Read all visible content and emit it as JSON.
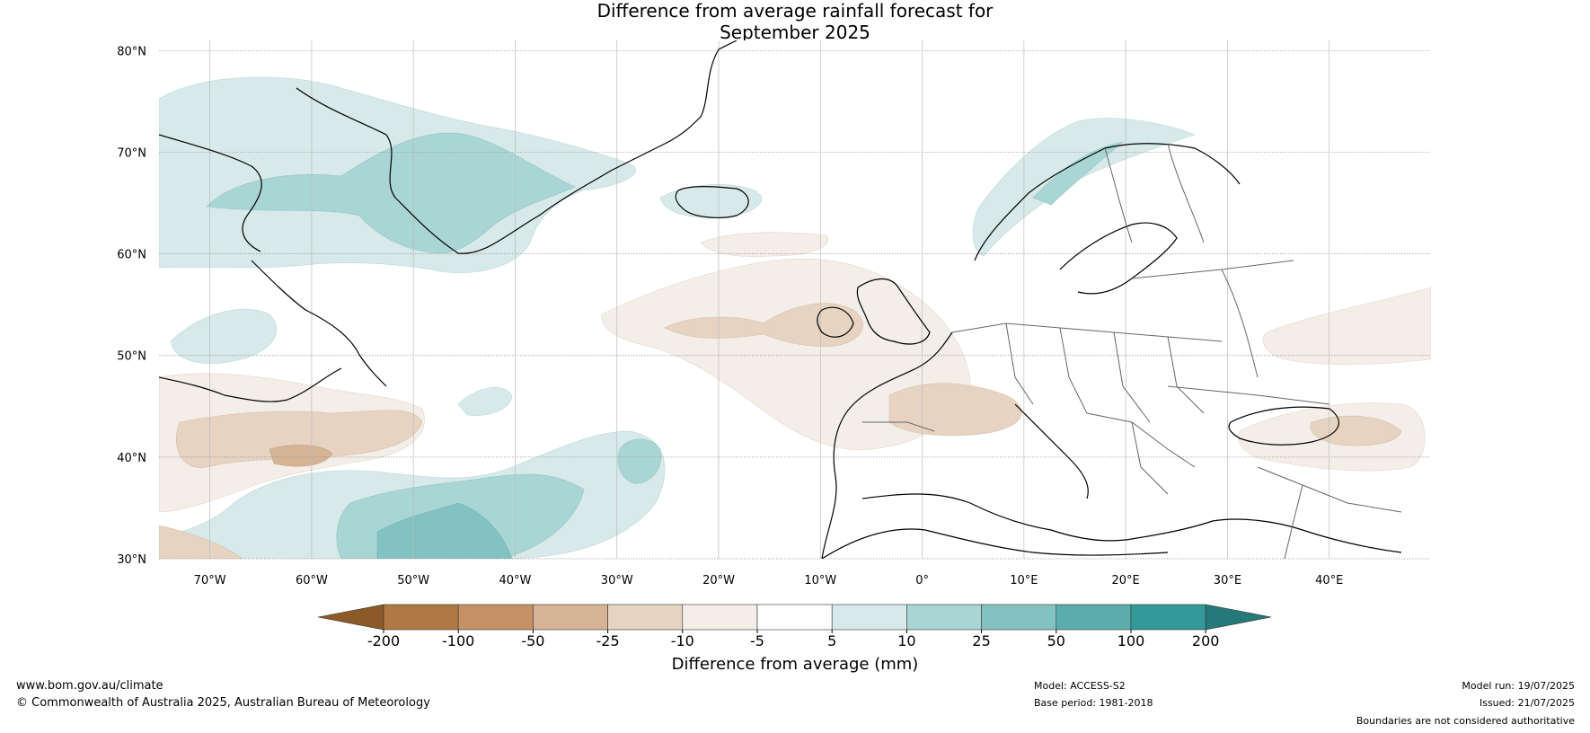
{
  "title": {
    "line1": "Difference from average rainfall forecast for",
    "line2": "September 2025"
  },
  "map": {
    "lat_labels": [
      "80°N",
      "70°N",
      "60°N",
      "50°N",
      "40°N",
      "30°N"
    ],
    "lon_labels": [
      "70°W",
      "60°W",
      "50°W",
      "40°W",
      "30°W",
      "20°W",
      "10°W",
      "0°",
      "10°E",
      "20°E",
      "30°E",
      "40°E"
    ]
  },
  "colorbar": {
    "label": "Difference from average (mm)",
    "ticks": [
      "-200",
      "-100",
      "-50",
      "-25",
      "-10",
      "-5",
      "5",
      "10",
      "25",
      "50",
      "100",
      "200"
    ],
    "colors": [
      "#8c5a26",
      "#b07845",
      "#c49167",
      "#d5b394",
      "#e6d3c2",
      "#f3eee8",
      "#ffffff",
      "#d7e9e8",
      "#a9d5d4",
      "#82c2c0",
      "#5aadac",
      "#35999a",
      "#26797a"
    ]
  },
  "footer": {
    "website": "www.bom.gov.au/climate",
    "copyright": "© Commonwealth of Australia 2025, Australian Bureau of Meteorology",
    "model": "Model: ACCESS-S2",
    "base_period": "Base period: 1981-2018",
    "model_run": "Model run: 19/07/2025",
    "issued": "Issued: 21/07/2025",
    "disclaimer": "Boundaries are not considered authoritative"
  }
}
